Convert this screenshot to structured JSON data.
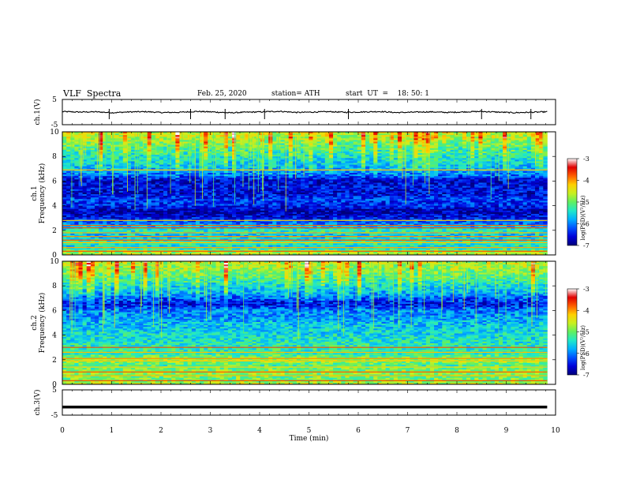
{
  "header": {
    "title": "VLF  Spectra",
    "date": "Feb. 25, 2020",
    "station": "station= ATH",
    "start": "start  UT  =    18: 50: 1"
  },
  "chart_data": [
    {
      "type": "line",
      "panel": "ch1-waveform",
      "ylabel": "ch.1(V)",
      "ylim": [
        -5,
        5
      ],
      "yticks": [
        -5,
        5
      ],
      "xlim": [
        0,
        10
      ],
      "series": [
        {
          "values": [
            1.2,
            0.8,
            1.0,
            0.3,
            0.9,
            1.1,
            0.4,
            0.6,
            1.3,
            0.9,
            0.2,
            0.7,
            1.0,
            1.4,
            0.5,
            0.8,
            1.1,
            0.6,
            0.9,
            1.2,
            0.4,
            0.7,
            1.0,
            0.5,
            0.9,
            1.3,
            0.8,
            0.3,
            0.6,
            1.0
          ]
        }
      ],
      "color": "#000000"
    },
    {
      "type": "heatmap",
      "panel": "ch1-spectrogram",
      "ylabel": "ch.1\nFrequency  (kHz)",
      "ylim": [
        0,
        10
      ],
      "yticks": [
        0,
        2,
        4,
        6,
        8,
        10
      ],
      "xlim": [
        0,
        10
      ],
      "colorbar_label": "log(PSD)(V²/Hz)",
      "colorbar_range": [
        -7,
        -3
      ],
      "colorbar_ticks": [
        -7,
        -6,
        -5,
        -4,
        -3
      ],
      "profile_khz_to_logpsd": [
        [
          0,
          -4.6
        ],
        [
          0.3,
          -4.8
        ],
        [
          0.6,
          -5.6
        ],
        [
          1.0,
          -5.2
        ],
        [
          1.5,
          -5.7
        ],
        [
          2.0,
          -5.3
        ],
        [
          2.5,
          -6.0
        ],
        [
          3.0,
          -6.5
        ],
        [
          3.5,
          -6.8
        ],
        [
          4.0,
          -6.4
        ],
        [
          4.5,
          -6.3
        ],
        [
          5.0,
          -6.6
        ],
        [
          5.5,
          -6.5
        ],
        [
          6.0,
          -6.7
        ],
        [
          6.5,
          -6.1
        ],
        [
          7.0,
          -5.8
        ],
        [
          7.5,
          -5.6
        ],
        [
          8.0,
          -5.5
        ],
        [
          8.5,
          -5.3
        ],
        [
          9.0,
          -5.1
        ],
        [
          9.5,
          -4.8
        ],
        [
          10.0,
          -4.7
        ]
      ],
      "lines_khz": [
        0.3,
        0.6,
        1.0,
        1.2,
        1.5,
        1.8,
        2.2,
        2.4,
        2.8,
        6.9
      ]
    },
    {
      "type": "heatmap",
      "panel": "ch2-spectrogram",
      "ylabel": "ch.2\nFrequency  (kHz)",
      "ylim": [
        0,
        10
      ],
      "yticks": [
        0,
        2,
        4,
        6,
        8,
        10
      ],
      "xlim": [
        0,
        10
      ],
      "colorbar_label": "log(PSD)(V²/Hz)",
      "colorbar_range": [
        -7,
        -3
      ],
      "colorbar_ticks": [
        -7,
        -6,
        -5,
        -4,
        -3
      ],
      "profile_khz_to_logpsd": [
        [
          0,
          -4.6
        ],
        [
          0.3,
          -4.9
        ],
        [
          0.6,
          -5.0
        ],
        [
          1.0,
          -4.8
        ],
        [
          1.5,
          -5.2
        ],
        [
          2.0,
          -4.7
        ],
        [
          2.5,
          -5.3
        ],
        [
          3.0,
          -5.3
        ],
        [
          3.5,
          -5.4
        ],
        [
          4.0,
          -5.5
        ],
        [
          4.5,
          -5.6
        ],
        [
          5.0,
          -5.7
        ],
        [
          5.5,
          -5.9
        ],
        [
          6.0,
          -6.0
        ],
        [
          6.5,
          -6.6
        ],
        [
          7.0,
          -6.2
        ],
        [
          7.5,
          -5.8
        ],
        [
          8.0,
          -5.6
        ],
        [
          8.5,
          -5.3
        ],
        [
          9.0,
          -5.1
        ],
        [
          9.5,
          -4.9
        ],
        [
          10.0,
          -4.8
        ]
      ],
      "lines_khz": [
        0.3,
        0.7,
        1.0,
        1.4,
        1.9,
        2.1,
        2.6,
        3.0
      ]
    },
    {
      "type": "line",
      "panel": "ch3-waveform",
      "ylabel": "ch.3(V)",
      "ylim": [
        -5,
        5
      ],
      "yticks": [
        -5,
        5
      ],
      "xlim": [
        0,
        10
      ],
      "xlabel": "Time  (min)",
      "xticks": [
        0,
        1,
        2,
        3,
        4,
        5,
        6,
        7,
        8,
        9,
        10
      ],
      "series": [
        {
          "values": [
            -1.8,
            -1.8
          ]
        }
      ],
      "color": "#000000"
    }
  ],
  "colormap": [
    "#00007a",
    "#0000d8",
    "#0050ff",
    "#00b0ff",
    "#20e8c8",
    "#60f060",
    "#c8f020",
    "#ffd000",
    "#ff6000",
    "#e00000",
    "#ffffff"
  ]
}
